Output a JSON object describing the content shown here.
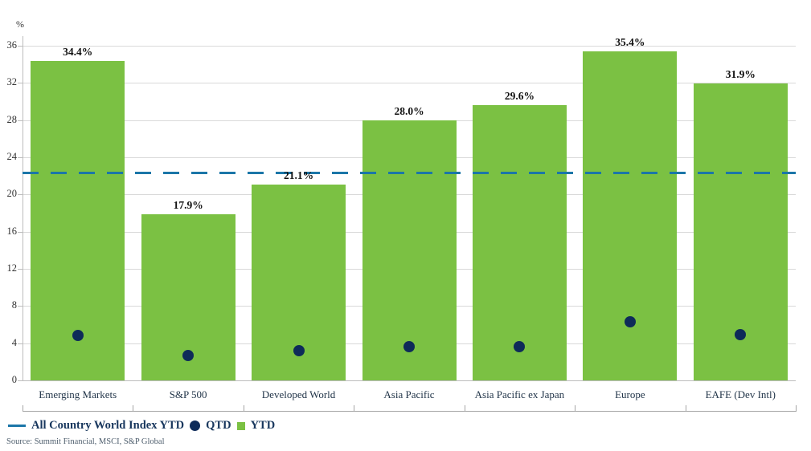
{
  "chart": {
    "unit_label": "%",
    "legend": {
      "reference": "All Country World Index YTD",
      "qtd": "QTD",
      "ytd": "YTD"
    },
    "source": "Source: Summit Financial, MSCI, S&P Global"
  },
  "colors": {
    "bar_green": "#7BC143",
    "dot_navy": "#0E2B59",
    "line_teal": "#1B76A8",
    "grid_gray": "#D9D9D9",
    "axis_gray": "#BDBDBD",
    "legend_navy": "#17365D"
  },
  "chart_data": {
    "type": "bar",
    "title": "",
    "xlabel": "",
    "ylabel": "%",
    "ylim": [
      0,
      36
    ],
    "yticks": [
      0,
      4,
      8,
      12,
      16,
      20,
      24,
      28,
      32,
      36
    ],
    "grid": true,
    "legend_position": "bottom-left",
    "categories": [
      "Emerging Markets",
      "S&P 500",
      "Developed World",
      "Asia Pacific",
      "Asia Pacific ex Japan",
      "Europe",
      "EAFE (Dev Intl)"
    ],
    "series": [
      {
        "name": "YTD",
        "render": "bar",
        "values": [
          34.4,
          17.9,
          21.1,
          28.0,
          29.6,
          35.4,
          31.9
        ],
        "labels": [
          "34.4%",
          "17.9%",
          "21.1%",
          "28.0%",
          "29.6%",
          "35.4%",
          "31.9%"
        ],
        "color": "#7BC143"
      },
      {
        "name": "QTD",
        "render": "scatter",
        "values": [
          4.8,
          2.7,
          3.2,
          3.6,
          3.6,
          6.3,
          4.9
        ],
        "color": "#0E2B59"
      }
    ],
    "reference_line": {
      "name": "All Country World Index YTD",
      "value": 22.4,
      "style": "dashed",
      "color": "#1B76A8"
    }
  }
}
